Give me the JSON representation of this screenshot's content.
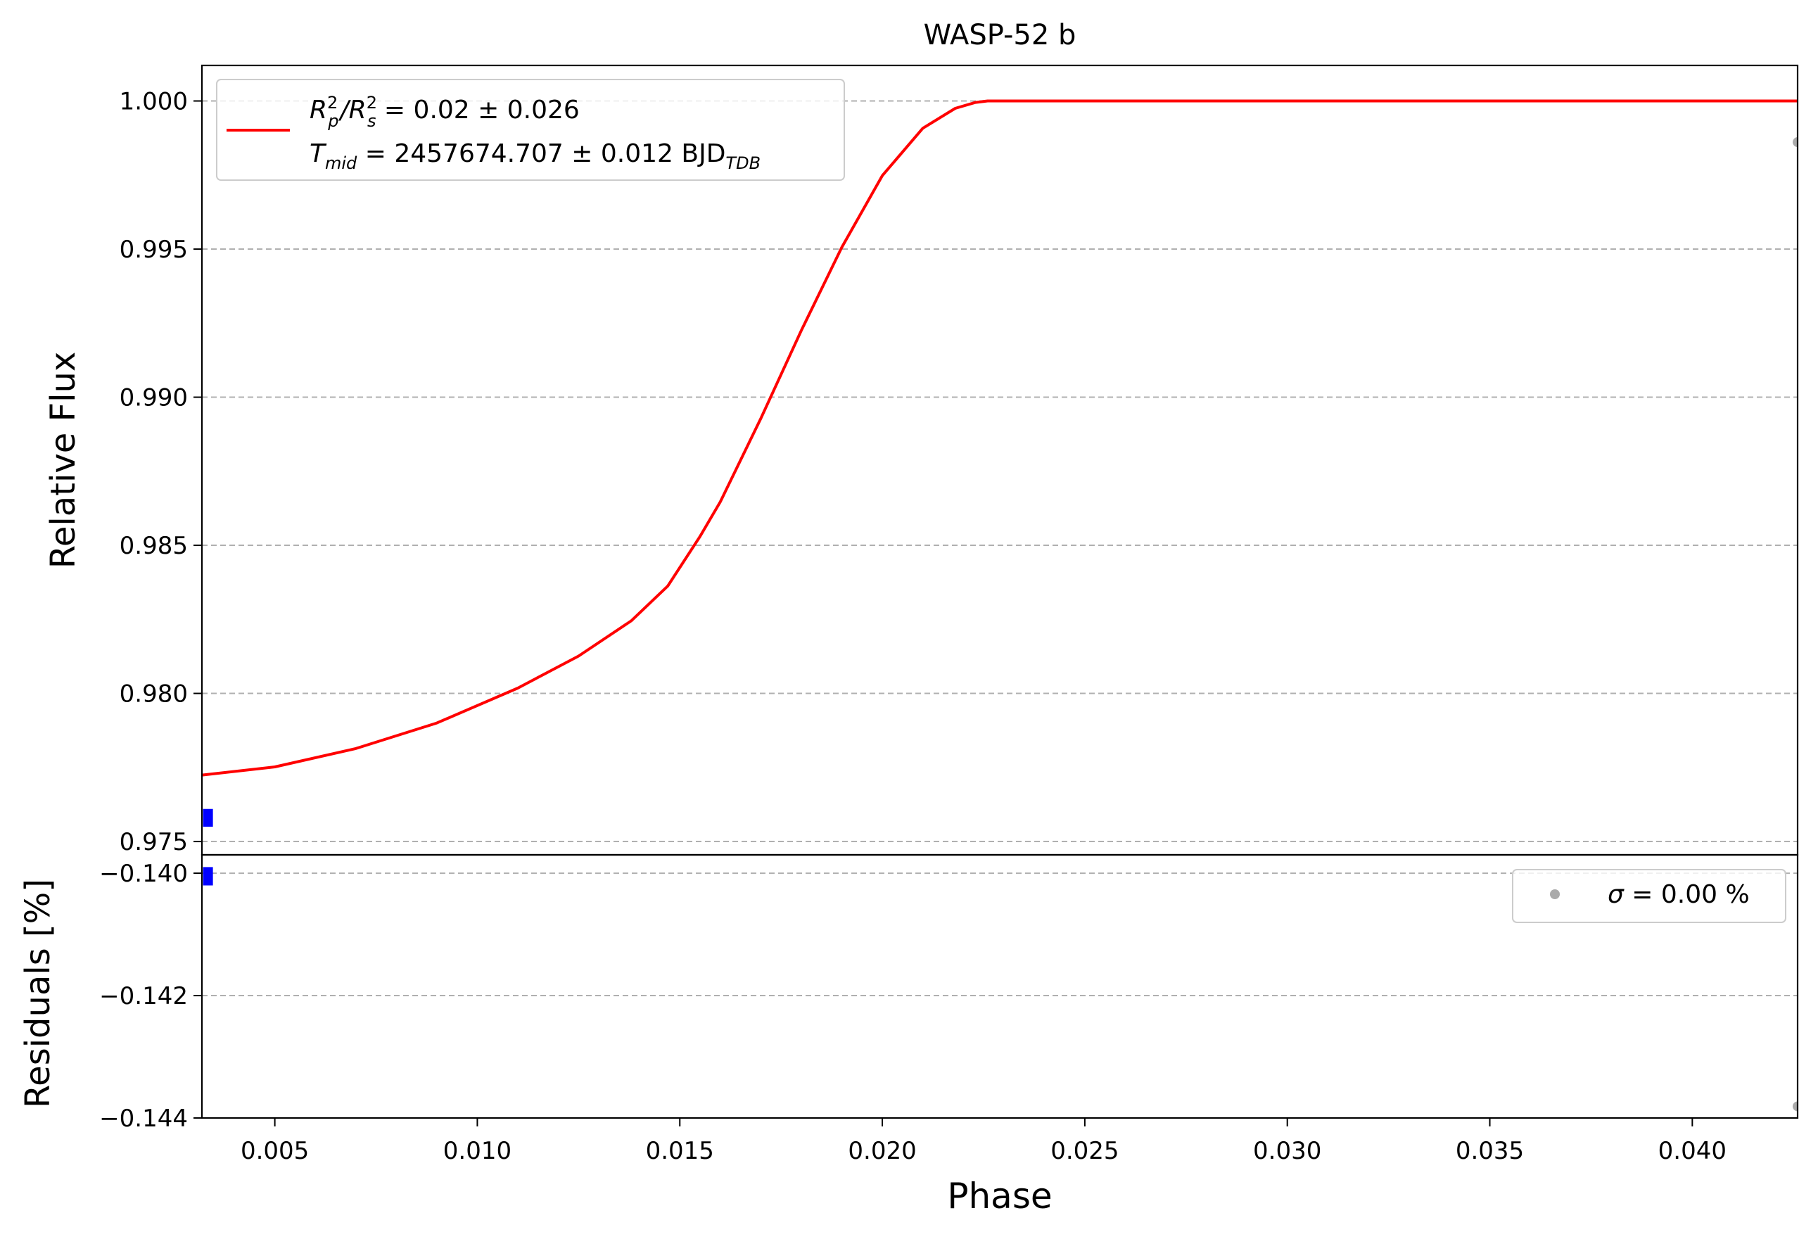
{
  "chart_data": [
    {
      "type": "line",
      "title": "WASP-52 b",
      "xlabel": "",
      "ylabel": "Relative Flux",
      "xlim": [
        0.0032,
        0.0426
      ],
      "ylim": [
        0.97455,
        1.0012
      ],
      "y_ticks": [
        0.975,
        0.98,
        0.985,
        0.99,
        0.995,
        1.0
      ],
      "y_tick_labels": [
        "0.975",
        "0.980",
        "0.985",
        "0.990",
        "0.995",
        "1.000"
      ],
      "grid": "horizontal dashed",
      "legend_position": "top-left",
      "legend": {
        "line1": {
          "a": "R",
          "a_sup": "2",
          "a_sub": "p",
          "slash": "/R",
          "b_sup": "2",
          "b_sub": "s",
          "rest": " = 0.02 ± 0.026"
        },
        "line2": {
          "a": "T",
          "a_sub": "mid",
          "rest": " = 2457674.707 ± 0.012 BJD",
          "tail_sub": "TDB"
        }
      },
      "series": [
        {
          "type": "line",
          "color": "#ff0000",
          "x": [
            0.0032,
            0.005,
            0.007,
            0.009,
            0.011,
            0.0125,
            0.0138,
            0.0147,
            0.0155,
            0.016,
            0.017,
            0.018,
            0.019,
            0.02,
            0.021,
            0.0218,
            0.0223,
            0.0226,
            0.025,
            0.03,
            0.035,
            0.04,
            0.0426
          ],
          "y": [
            0.97724,
            0.97752,
            0.97814,
            0.979,
            0.98018,
            0.98126,
            0.98245,
            0.98362,
            0.9853,
            0.98647,
            0.98928,
            0.99225,
            0.99506,
            0.99748,
            0.99908,
            0.99975,
            0.99995,
            1.0,
            1.0,
            1.0,
            1.0,
            1.0,
            1.0
          ]
        },
        {
          "type": "errorbar",
          "color": "#0000ff",
          "x": [
            0.00335
          ],
          "y": [
            0.9758
          ],
          "yerr": [
            0.0003
          ]
        },
        {
          "type": "scatter",
          "color": "#aaaaaa",
          "x": [
            0.0426
          ],
          "y": [
            0.99861
          ]
        }
      ]
    },
    {
      "type": "scatter",
      "title": "",
      "xlabel": "Phase",
      "ylabel": "Residuals [%]",
      "xlim": [
        0.0032,
        0.0426
      ],
      "ylim": [
        -0.144,
        -0.1397
      ],
      "x_ticks": [
        0.005,
        0.01,
        0.015,
        0.02,
        0.025,
        0.03,
        0.035,
        0.04
      ],
      "x_tick_labels": [
        "0.005",
        "0.010",
        "0.015",
        "0.020",
        "0.025",
        "0.030",
        "0.035",
        "0.040"
      ],
      "y_ticks": [
        -0.144,
        -0.142,
        -0.14
      ],
      "y_tick_labels": [
        "−0.144",
        "−0.142",
        "−0.140"
      ],
      "grid": "horizontal dashed",
      "legend_position": "top-right",
      "legend": {
        "symbol": "σ",
        "rest": " = 0.00 %"
      },
      "series": [
        {
          "type": "errorbar",
          "color": "#0000ff",
          "x": [
            0.00335
          ],
          "y": [
            -0.14005
          ],
          "yerr": [
            0.00015
          ]
        },
        {
          "type": "scatter",
          "color": "#aaaaaa",
          "x": [
            0.0426
          ],
          "y": [
            -0.14381
          ]
        }
      ]
    }
  ]
}
